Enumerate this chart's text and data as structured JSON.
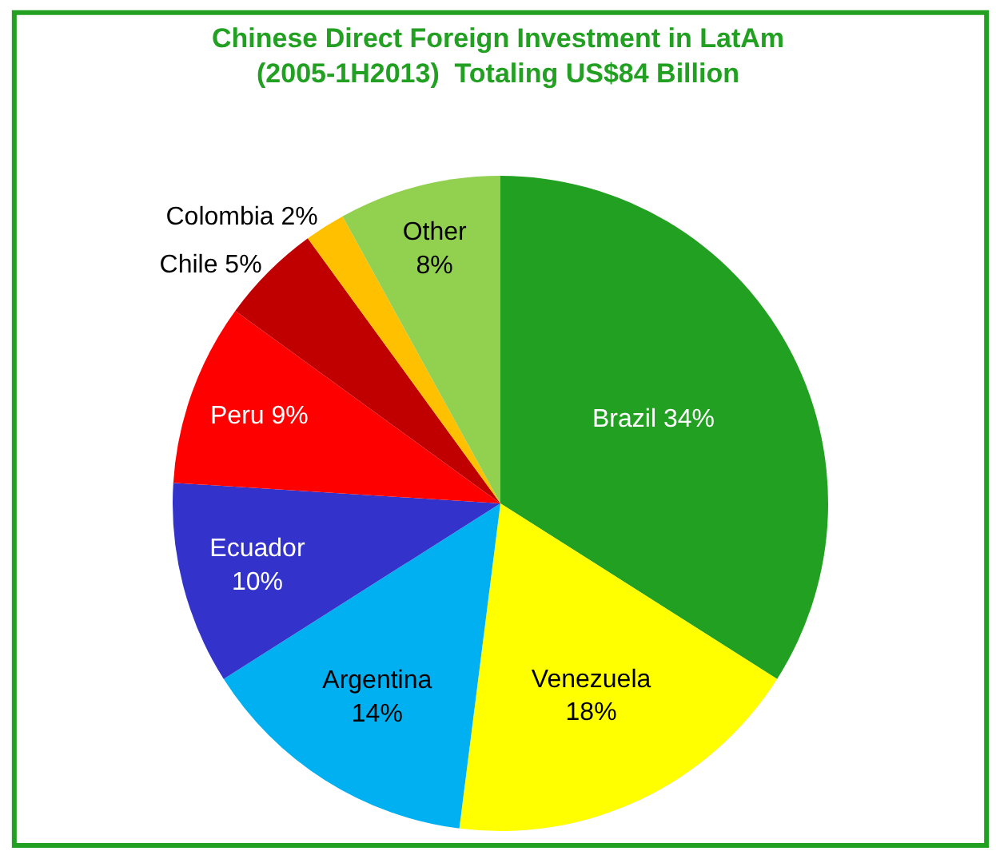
{
  "chart_data": {
    "type": "pie",
    "title": "Chinese Direct Foreign Investment in LatAm\n(2005-1H2013)  Totaling US$84 Billion",
    "categories": [
      "Brazil",
      "Venezuela",
      "Argentina",
      "Ecuador",
      "Peru",
      "Chile",
      "Colombia",
      "Other"
    ],
    "values": [
      34,
      18,
      14,
      10,
      9,
      5,
      2,
      8
    ],
    "colors": [
      "#22a022",
      "#ffff00",
      "#00b0f0",
      "#3333cc",
      "#ff0000",
      "#c00000",
      "#ffc000",
      "#92d050"
    ],
    "value_labels": [
      "34%",
      "\n18%",
      "\n14%",
      "\n10%",
      "9%",
      "5%",
      "2%",
      "\n8%"
    ],
    "legend": false
  }
}
